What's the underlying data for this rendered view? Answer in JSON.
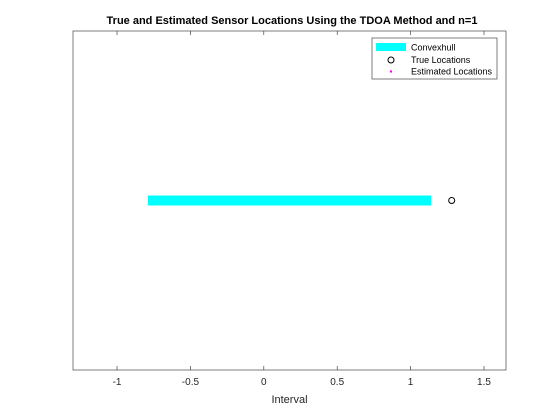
{
  "chart_data": {
    "type": "scatter",
    "title": "True and Estimated Sensor Locations Using the  TDOA  Method and n=1",
    "xlabel": "Interval",
    "ylabel": "",
    "xlim": [
      -1.3,
      1.65
    ],
    "ylim": [
      -1,
      1
    ],
    "xticks": [
      -1,
      -0.5,
      0,
      0.5,
      1,
      1.5
    ],
    "xtick_labels": [
      "-1",
      "-0.5",
      "0",
      "0.5",
      "1",
      "1.5"
    ],
    "grid": false,
    "legend_position": "top-right",
    "series": [
      {
        "name": "Convexhull",
        "kind": "band",
        "color": "#00ffff",
        "x_start": -0.79,
        "x_end": 1.14,
        "y": 0
      },
      {
        "name": "True Locations",
        "kind": "marker",
        "marker": "open-circle",
        "color": "#000000",
        "points": [
          {
            "x": 1.28,
            "y": 0
          }
        ]
      },
      {
        "name": "Estimated Locations",
        "kind": "marker",
        "marker": "dot",
        "color": "#ff00ff",
        "points": []
      }
    ]
  }
}
